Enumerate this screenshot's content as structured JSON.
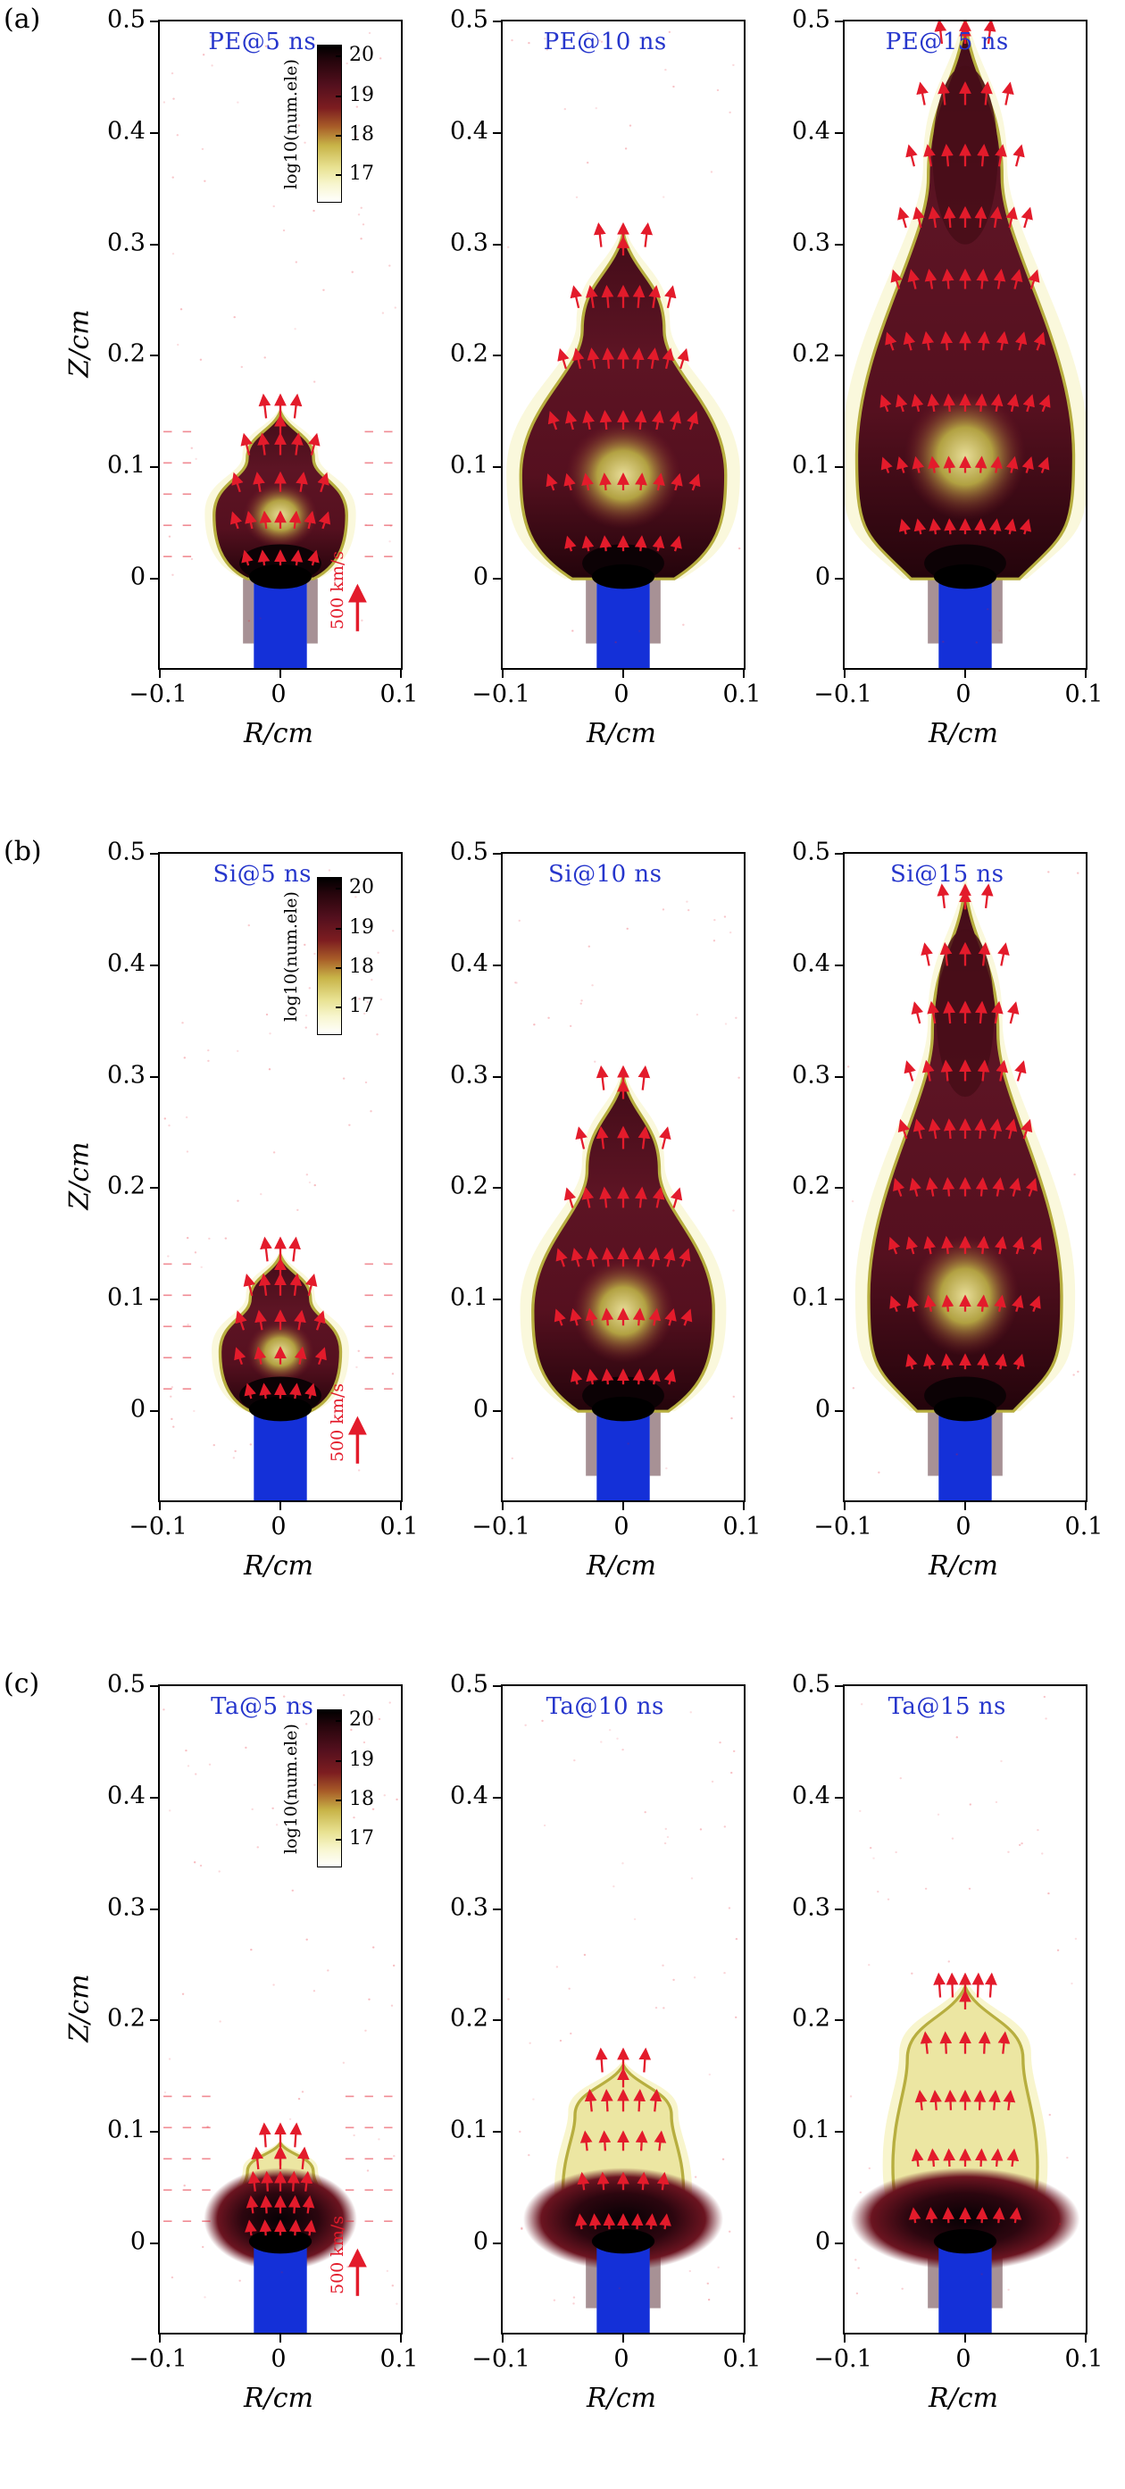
{
  "colors": {
    "arrow": "#e31b2b",
    "rod": "#1430d8",
    "title": "#2636cc",
    "axis": "#000000",
    "plume_edge": "#b7ae3f",
    "plume_dark": "#4a0d16"
  },
  "chart_data": {
    "type": "heatmap",
    "xlabel": "R/cm",
    "ylabel": "Z/cm",
    "xlim": [
      -0.1,
      0.1
    ],
    "ylim": [
      -0.08,
      0.5
    ],
    "xticks": [
      "−0.1",
      "0",
      "0.1"
    ],
    "yticks": [
      "0.5",
      "0.4",
      "0.3",
      "0.2",
      "0.1",
      "0"
    ],
    "grid": false,
    "colorbar": {
      "label": "log10(num.ele)",
      "ticks": [
        "20",
        "19",
        "18",
        "17"
      ],
      "stops": [
        [
          "#000000",
          0
        ],
        [
          "#26050c",
          10
        ],
        [
          "#55101e",
          26
        ],
        [
          "#7d1d20",
          40
        ],
        [
          "#a85d28",
          52
        ],
        [
          "#c8b448",
          64
        ],
        [
          "#e8e292",
          78
        ],
        [
          "#f8f6d0",
          89
        ],
        [
          "#ffffff",
          100
        ]
      ]
    },
    "velocity_scale_label": "500 km/s",
    "rows": [
      {
        "label": "(a)",
        "target": "PE",
        "panels": [
          {
            "title": "PE@5 ns",
            "time_ns": 5,
            "plume_height_cm": 0.15,
            "plume_halfwidth_cm": 0.055,
            "shape": "bulb"
          },
          {
            "title": "PE@10 ns",
            "time_ns": 10,
            "plume_height_cm": 0.31,
            "plume_halfwidth_cm": 0.085,
            "shape": "teardrop"
          },
          {
            "title": "PE@15 ns",
            "time_ns": 15,
            "plume_height_cm": 0.5,
            "plume_halfwidth_cm": 0.09,
            "shape": "spear"
          }
        ]
      },
      {
        "label": "(b)",
        "target": "Si",
        "panels": [
          {
            "title": "Si@5 ns",
            "time_ns": 5,
            "plume_height_cm": 0.14,
            "plume_halfwidth_cm": 0.05,
            "shape": "bulb"
          },
          {
            "title": "Si@10 ns",
            "time_ns": 10,
            "plume_height_cm": 0.3,
            "plume_halfwidth_cm": 0.075,
            "shape": "teardrop"
          },
          {
            "title": "Si@15 ns",
            "time_ns": 15,
            "plume_height_cm": 0.47,
            "plume_halfwidth_cm": 0.08,
            "shape": "spear"
          }
        ]
      },
      {
        "label": "(c)",
        "target": "Ta",
        "panels": [
          {
            "title": "Ta@5 ns",
            "time_ns": 5,
            "plume_height_cm": 0.09,
            "plume_halfwidth_cm": 0.035,
            "shape": "mushroom"
          },
          {
            "title": "Ta@10 ns",
            "time_ns": 10,
            "plume_height_cm": 0.16,
            "plume_halfwidth_cm": 0.05,
            "shape": "column"
          },
          {
            "title": "Ta@15 ns",
            "time_ns": 15,
            "plume_height_cm": 0.23,
            "plume_halfwidth_cm": 0.06,
            "shape": "column"
          }
        ]
      }
    ]
  }
}
